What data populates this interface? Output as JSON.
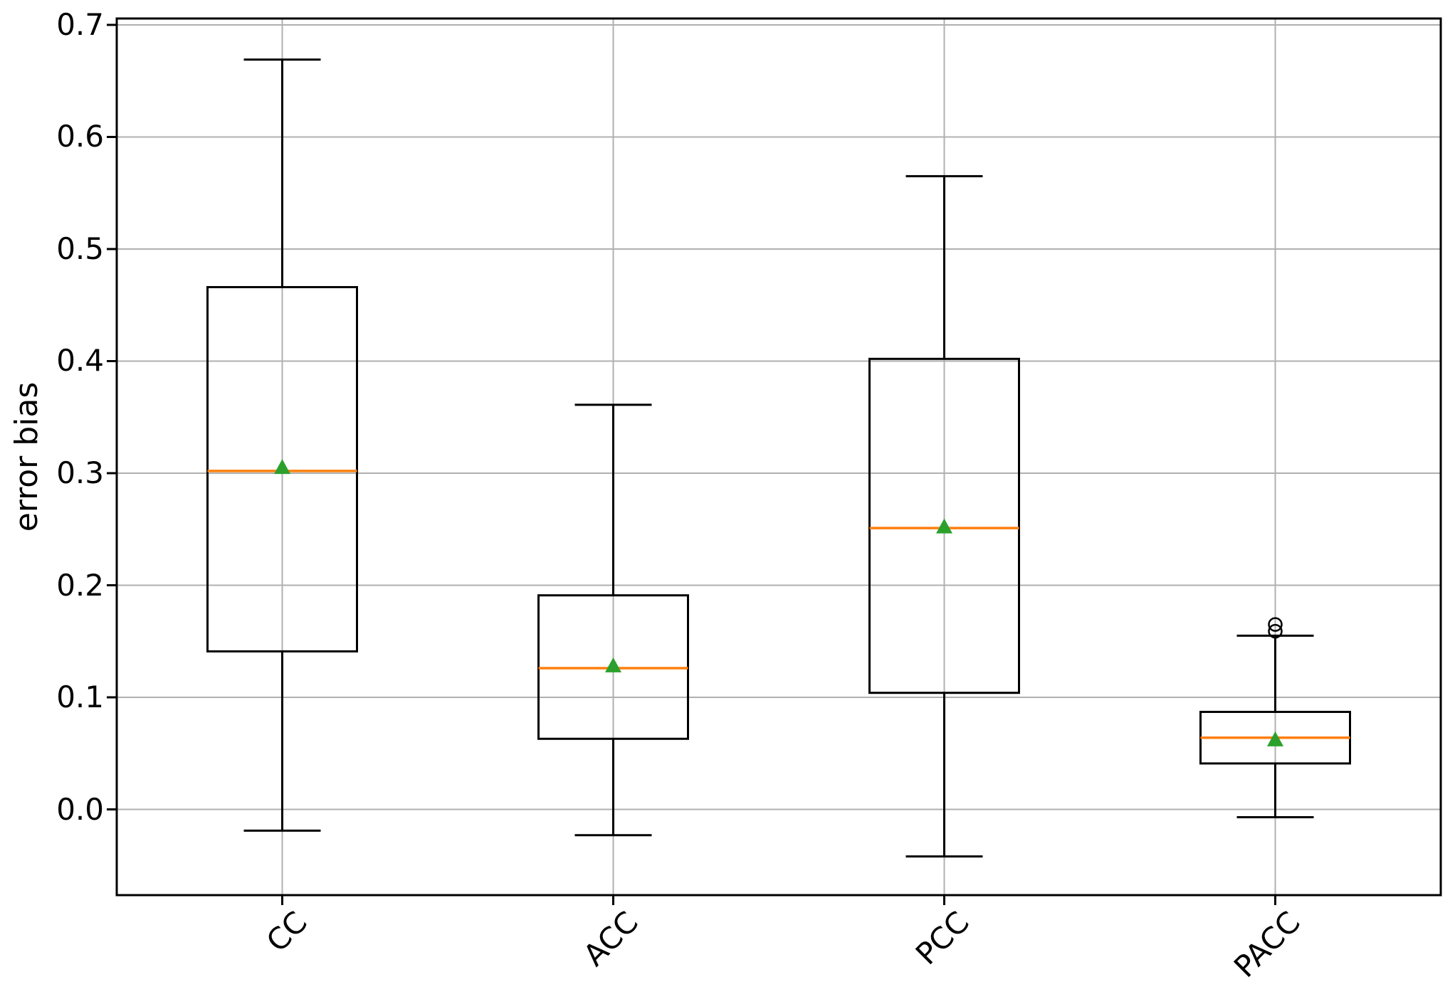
{
  "figure": {
    "background": "#ffffff"
  },
  "chart_data": {
    "type": "box",
    "title": "",
    "xlabel": "",
    "ylabel": "error bias",
    "categories": [
      "CC",
      "ACC",
      "PCC",
      "PACC"
    ],
    "ytick_labels": [
      "0.0",
      "0.1",
      "0.2",
      "0.3",
      "0.4",
      "0.5",
      "0.6",
      "0.7"
    ],
    "ytick_values": [
      0.0,
      0.1,
      0.2,
      0.3,
      0.4,
      0.5,
      0.6,
      0.7
    ],
    "ylim": [
      -0.0765,
      0.7057
    ],
    "grid": true,
    "legend": "none",
    "groups": [
      {
        "label": "CC",
        "whisker_low": -0.019,
        "q1": 0.141,
        "median": 0.302,
        "q3": 0.466,
        "whisker_high": 0.669,
        "mean": 0.305,
        "outliers": []
      },
      {
        "label": "ACC",
        "whisker_low": -0.023,
        "q1": 0.063,
        "median": 0.126,
        "q3": 0.191,
        "whisker_high": 0.361,
        "mean": 0.128,
        "outliers": []
      },
      {
        "label": "PCC",
        "whisker_low": -0.042,
        "q1": 0.104,
        "median": 0.251,
        "q3": 0.402,
        "whisker_high": 0.565,
        "mean": 0.252,
        "outliers": []
      },
      {
        "label": "PACC",
        "whisker_low": -0.007,
        "q1": 0.041,
        "median": 0.064,
        "q3": 0.087,
        "whisker_high": 0.155,
        "mean": 0.062,
        "outliers": [
          0.159,
          0.165
        ]
      }
    ],
    "colors": {
      "line": "#000000",
      "median": "#ff7f0e",
      "mean": "#2ca02c",
      "grid": "#b0b0b0",
      "background": "#ffffff"
    }
  }
}
